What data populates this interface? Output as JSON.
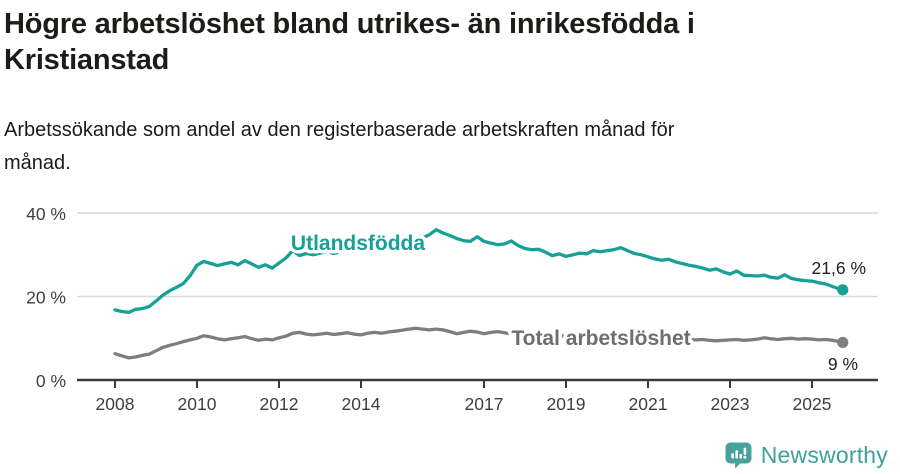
{
  "header": {
    "title_line1": "Högre arbetslöshet bland utrikes- än inrikesfödda i",
    "title_line2": "Kristianstad",
    "subtitle_line1": "Arbetssökande som andel av den registerbaserade arbetskraften månad för",
    "subtitle_line2": "månad."
  },
  "footer": {
    "brand": "Newsworthy"
  },
  "colors": {
    "accent_teal": "#16a096",
    "line_gray": "#7e7e7e",
    "total_label_gray": "#6d6d73",
    "grid": "#d9d9d9",
    "axis": "#3a3a3a",
    "axis_text": "#3f3f3f",
    "value_text": "#222222",
    "logo_teal": "#47a29c"
  },
  "chart_data": {
    "type": "line",
    "title": "Högre arbetslöshet bland utrikes- än inrikesfödda i Kristianstad",
    "subtitle": "Arbetssökande som andel av den registerbaserade arbetskraften månad för månad.",
    "xlabel": "",
    "ylabel": "",
    "grid": "horizontal",
    "legend_position": "inline-labels",
    "xlim": [
      2007.1,
      2026.5
    ],
    "ylim": [
      0,
      42
    ],
    "y_ticks": [
      0,
      20,
      40
    ],
    "y_tick_labels": [
      "0 %",
      "20 %",
      "40 %"
    ],
    "x_tick_years": [
      2008,
      2010,
      2012,
      2014,
      2017,
      2019,
      2021,
      2023,
      2025
    ],
    "x_tick_labels": [
      "2008",
      "2010",
      "2012",
      "2014",
      "2017",
      "2019",
      "2021",
      "2023",
      "2025"
    ],
    "x": [
      2008.0,
      2008.167,
      2008.333,
      2008.5,
      2008.667,
      2008.833,
      2009.0,
      2009.167,
      2009.333,
      2009.5,
      2009.667,
      2009.833,
      2010.0,
      2010.167,
      2010.333,
      2010.5,
      2010.667,
      2010.833,
      2011.0,
      2011.167,
      2011.333,
      2011.5,
      2011.667,
      2011.833,
      2012.0,
      2012.167,
      2012.333,
      2012.5,
      2012.667,
      2012.833,
      2013.0,
      2013.167,
      2013.333,
      2013.5,
      2013.667,
      2013.833,
      2014.0,
      2014.167,
      2014.333,
      2014.5,
      2014.667,
      2014.833,
      2015.0,
      2015.167,
      2015.333,
      2015.5,
      2015.667,
      2015.833,
      2016.0,
      2016.167,
      2016.333,
      2016.5,
      2016.667,
      2016.833,
      2017.0,
      2017.167,
      2017.333,
      2017.5,
      2017.667,
      2017.833,
      2018.0,
      2018.167,
      2018.333,
      2018.5,
      2018.667,
      2018.833,
      2019.0,
      2019.167,
      2019.333,
      2019.5,
      2019.667,
      2019.833,
      2020.0,
      2020.167,
      2020.333,
      2020.5,
      2020.667,
      2020.833,
      2021.0,
      2021.167,
      2021.333,
      2021.5,
      2021.667,
      2021.833,
      2022.0,
      2022.167,
      2022.333,
      2022.5,
      2022.667,
      2022.833,
      2023.0,
      2023.167,
      2023.333,
      2023.5,
      2023.667,
      2023.833,
      2024.0,
      2024.167,
      2024.333,
      2024.5,
      2024.667,
      2024.833,
      2025.0,
      2025.167,
      2025.333,
      2025.5,
      2025.667,
      2025.75
    ],
    "series": [
      {
        "name": "Utlandsfödda",
        "color": "#16a096",
        "end_label": "21,6 %",
        "end_value": 21.6,
        "values": [
          16.8,
          16.4,
          16.2,
          16.9,
          17.1,
          17.6,
          18.9,
          20.3,
          21.4,
          22.2,
          23.1,
          25.0,
          27.5,
          28.4,
          27.9,
          27.4,
          27.8,
          28.2,
          27.6,
          28.6,
          27.8,
          27.0,
          27.6,
          26.8,
          28.0,
          29.2,
          31.0,
          29.8,
          30.3,
          30.0,
          30.4,
          30.8,
          30.3,
          30.7,
          31.2,
          30.9,
          31.4,
          31.9,
          31.5,
          31.8,
          32.3,
          32.9,
          33.5,
          33.9,
          34.2,
          34.0,
          34.8,
          36.0,
          35.2,
          34.6,
          33.9,
          33.4,
          33.2,
          34.3,
          33.2,
          32.8,
          32.4,
          32.6,
          33.3,
          32.2,
          31.5,
          31.2,
          31.3,
          30.6,
          29.8,
          30.2,
          29.6,
          30.0,
          30.4,
          30.2,
          31.0,
          30.7,
          31.0,
          31.2,
          31.7,
          31.0,
          30.3,
          30.0,
          29.5,
          29.0,
          28.7,
          28.9,
          28.3,
          27.9,
          27.5,
          27.2,
          26.8,
          26.3,
          26.6,
          25.9,
          25.4,
          26.1,
          25.1,
          25.0,
          24.9,
          25.1,
          24.6,
          24.4,
          25.2,
          24.3,
          24.0,
          23.8,
          23.7,
          23.3,
          23.0,
          22.4,
          21.8,
          21.6
        ]
      },
      {
        "name": "Total arbetslöshet",
        "color": "#7e7e7e",
        "end_label": "9 %",
        "end_value": 9.0,
        "values": [
          6.3,
          5.8,
          5.3,
          5.5,
          5.9,
          6.2,
          7.0,
          7.8,
          8.3,
          8.7,
          9.2,
          9.6,
          10.0,
          10.6,
          10.3,
          9.9,
          9.6,
          9.9,
          10.1,
          10.4,
          9.9,
          9.5,
          9.8,
          9.6,
          10.1,
          10.5,
          11.2,
          11.4,
          11.0,
          10.8,
          11.0,
          11.2,
          10.9,
          11.1,
          11.3,
          11.0,
          10.8,
          11.2,
          11.4,
          11.2,
          11.5,
          11.7,
          11.9,
          12.2,
          12.4,
          12.2,
          12.0,
          12.2,
          12.0,
          11.6,
          11.1,
          11.4,
          11.7,
          11.5,
          11.1,
          11.4,
          11.6,
          11.3,
          11.0,
          10.8,
          10.9,
          11.1,
          10.8,
          10.6,
          10.4,
          10.6,
          10.5,
          10.7,
          10.5,
          10.4,
          10.6,
          10.4,
          10.5,
          11.0,
          11.3,
          11.0,
          10.8,
          10.6,
          10.5,
          10.4,
          10.2,
          10.0,
          9.9,
          9.8,
          9.7,
          9.6,
          9.7,
          9.5,
          9.4,
          9.5,
          9.6,
          9.7,
          9.5,
          9.6,
          9.8,
          10.1,
          9.9,
          9.7,
          9.9,
          10.0,
          9.8,
          9.9,
          9.8,
          9.6,
          9.7,
          9.5,
          9.2,
          9.0
        ]
      }
    ]
  }
}
